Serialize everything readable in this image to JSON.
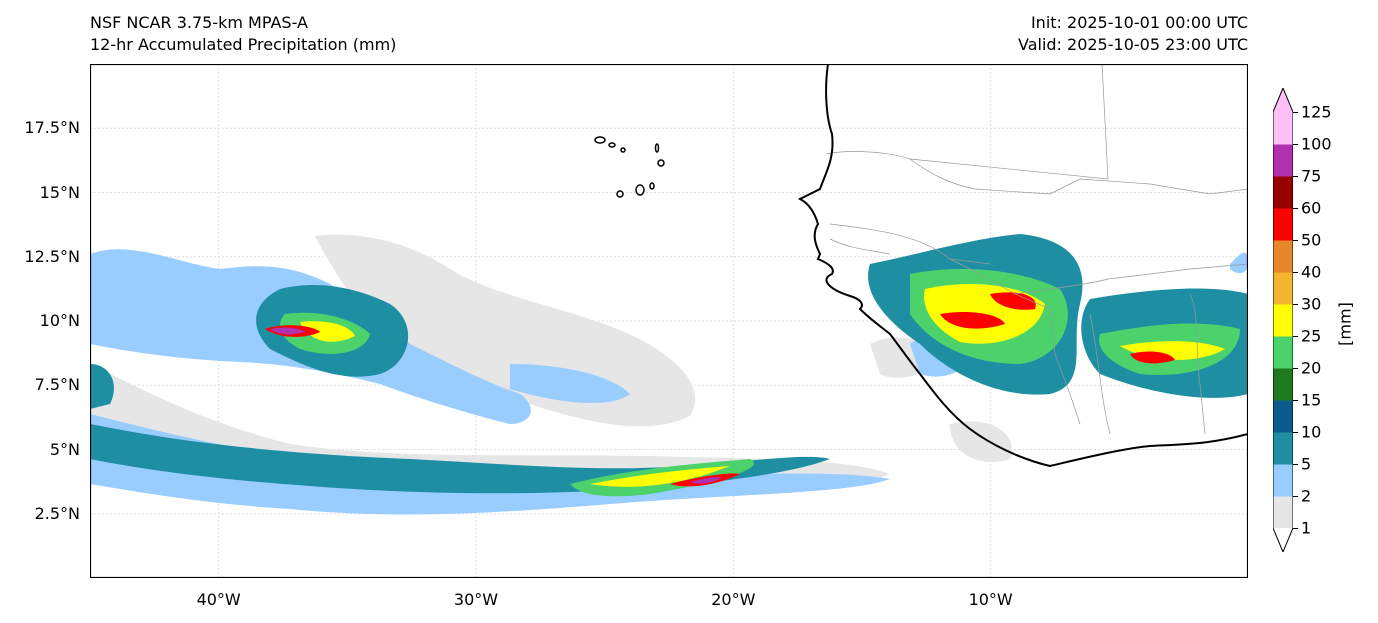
{
  "header": {
    "model": "NSF NCAR 3.75-km MPAS-A",
    "field": "12-hr Accumulated Precipitation (mm)",
    "init": "Init: 2025-10-01 00:00 UTC",
    "valid": "Valid: 2025-10-05 23:00 UTC"
  },
  "map": {
    "lon_range": [
      -45,
      0
    ],
    "lat_range": [
      0,
      20
    ],
    "lat_ticks": [
      {
        "value": 17.5,
        "label": "17.5°N"
      },
      {
        "value": 15,
        "label": "15°N"
      },
      {
        "value": 12.5,
        "label": "12.5°N"
      },
      {
        "value": 10,
        "label": "10°N"
      },
      {
        "value": 7.5,
        "label": "7.5°N"
      },
      {
        "value": 5,
        "label": "5°N"
      },
      {
        "value": 2.5,
        "label": "2.5°N"
      }
    ],
    "lon_ticks": [
      {
        "value": -40,
        "label": "40°W"
      },
      {
        "value": -30,
        "label": "30°W"
      },
      {
        "value": -20,
        "label": "20°W"
      },
      {
        "value": -10,
        "label": "10°W"
      }
    ],
    "grid": true
  },
  "colorbar": {
    "unit": "[mm]",
    "levels": [
      "1",
      "2",
      "5",
      "10",
      "15",
      "20",
      "25",
      "30",
      "40",
      "50",
      "60",
      "75",
      "100",
      "125"
    ],
    "colors": [
      "#e6e6e6",
      "#99ccff",
      "#1e8fa3",
      "#0a5a8c",
      "#1f7a1f",
      "#4cd26a",
      "#ffff00",
      "#f5b531",
      "#e8862b",
      "#ff0000",
      "#990000",
      "#b030b0",
      "#ffbff7"
    ],
    "extend_low_color": "#ffffff",
    "extend_high_color": "#ffbff7"
  }
}
